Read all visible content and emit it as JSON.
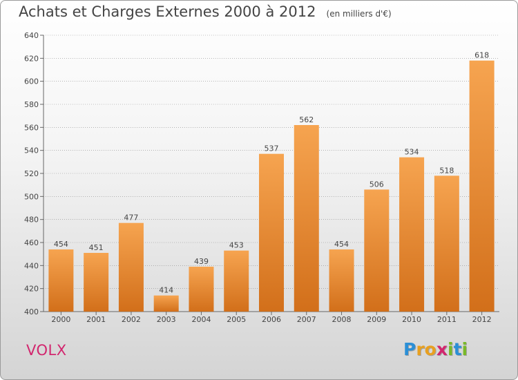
{
  "title": "Achats et Charges Externes 2000 à 2012",
  "unit": "(en milliers d'€)",
  "location": "VOLX",
  "logo": {
    "text": "Proxiti",
    "letters": [
      {
        "ch": "P",
        "color": "#2b8fd6"
      },
      {
        "ch": "r",
        "color": "#e8a020"
      },
      {
        "ch": "o",
        "color": "#e8a020"
      },
      {
        "ch": "x",
        "color": "#d2266e"
      },
      {
        "ch": "i",
        "color": "#79b928"
      },
      {
        "ch": "t",
        "color": "#2b8fd6"
      },
      {
        "ch": "i",
        "color": "#79b928"
      }
    ]
  },
  "colors": {
    "bar_top": "#f6a450",
    "bar_bottom": "#d26f1a",
    "grid": "#8a8a8a",
    "text": "#444444",
    "location": "#d2266e"
  },
  "chart_data": {
    "type": "bar",
    "categories": [
      "2000",
      "2001",
      "2002",
      "2003",
      "2004",
      "2005",
      "2006",
      "2007",
      "2008",
      "2009",
      "2010",
      "2011",
      "2012"
    ],
    "values": [
      454,
      451,
      477,
      414,
      439,
      453,
      537,
      562,
      454,
      506,
      534,
      518,
      618
    ],
    "ylim": [
      400,
      640
    ],
    "yticks": [
      400,
      420,
      440,
      460,
      480,
      500,
      520,
      540,
      560,
      580,
      600,
      620,
      640
    ],
    "grid": "horizontal dashed",
    "legend": "none"
  }
}
